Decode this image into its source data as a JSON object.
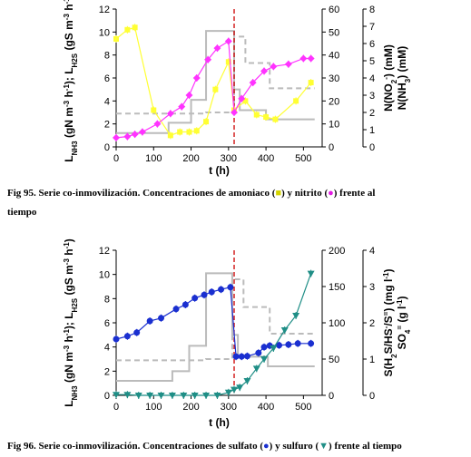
{
  "chart_data": [
    {
      "type": "line",
      "id": "fig95",
      "xlabel": "t (h)",
      "ylabel_left": "L_NH3 (gN m^-3 h^-1); L_H2S (gS m^-3 h^-1)",
      "ylabel_right1": "N(NO2-) (mM)",
      "ylabel_right2": "N(NH3) (mM)",
      "xlim": [
        0,
        550
      ],
      "xticks": [
        0,
        100,
        200,
        300,
        400,
        500
      ],
      "ylim_left": [
        0,
        12
      ],
      "yticks_left": [
        0,
        2,
        4,
        6,
        8,
        10,
        12
      ],
      "ylim_right1": [
        0,
        60
      ],
      "yticks_right1": [
        0,
        10,
        20,
        30,
        40,
        50,
        60
      ],
      "ylim_right2": [
        0,
        8
      ],
      "yticks_right2": [
        0,
        1,
        2,
        3,
        4,
        5,
        6,
        7,
        8
      ],
      "vline_x": 315,
      "series": [
        {
          "axis": "right1",
          "color": "#ffff33",
          "marker": "square",
          "x": [
            0,
            30,
            50,
            100,
            145,
            170,
            195,
            215,
            240,
            265,
            300,
            315,
            345,
            375,
            400,
            425,
            480,
            520
          ],
          "y": [
            47,
            51,
            52,
            16,
            5,
            6.5,
            6.5,
            7,
            11,
            25,
            37,
            16,
            20,
            14,
            13,
            12,
            20,
            28
          ]
        },
        {
          "axis": "right1",
          "color": "#ff33ff",
          "marker": "diamond",
          "x": [
            0,
            30,
            50,
            70,
            110,
            145,
            175,
            195,
            215,
            245,
            270,
            300,
            315,
            335,
            365,
            395,
            420,
            460,
            500,
            520
          ],
          "y": [
            4,
            4.5,
            5.5,
            6.5,
            10,
            14.5,
            17.5,
            22.5,
            30,
            38,
            43,
            46,
            15,
            21,
            28,
            33,
            35,
            36,
            38.5,
            38.5
          ]
        },
        {
          "axis": "left",
          "color": "#bbbbbb",
          "style": "solid",
          "step": true,
          "x": [
            0,
            140,
            140,
            200,
            200,
            240,
            240,
            315,
            315,
            330,
            330,
            400,
            400,
            530
          ],
          "y": [
            1.2,
            1.2,
            2.1,
            2.1,
            4.1,
            4.1,
            10.1,
            10.1,
            5.0,
            5.0,
            3.2,
            3.2,
            2.4,
            2.4
          ]
        },
        {
          "axis": "left",
          "color": "#bbbbbb",
          "style": "dashed",
          "step": true,
          "x": [
            0,
            240,
            240,
            315,
            315,
            345,
            345,
            410,
            410,
            530
          ],
          "y": [
            2.9,
            2.9,
            3.0,
            3.0,
            9.6,
            9.6,
            7.3,
            7.3,
            5.1,
            5.1
          ]
        }
      ]
    },
    {
      "type": "line",
      "id": "fig96",
      "xlabel": "t (h)",
      "ylabel_left": "L_NH3 (gN m^-3 h^-1); L_H2S (gS m^-3 h^-1)",
      "ylabel_right1": "S(H2S/HS-/S=) (mg l^-1)",
      "ylabel_right2": "SO4= (g l^-1)",
      "xlim": [
        0,
        550
      ],
      "xticks": [
        0,
        100,
        200,
        300,
        400,
        500
      ],
      "ylim_left": [
        0,
        12
      ],
      "yticks_left": [
        0,
        2,
        4,
        6,
        8,
        10,
        12
      ],
      "ylim_right1": [
        0,
        200
      ],
      "yticks_right1": [
        0,
        50,
        100,
        150,
        200
      ],
      "ylim_right2": [
        0,
        4
      ],
      "yticks_right2": [
        0,
        1,
        2,
        3,
        4
      ],
      "vline_x": 315,
      "series": [
        {
          "axis": "right2",
          "color": "#1a2fd0",
          "marker": "circle",
          "x": [
            0,
            30,
            55,
            90,
            120,
            160,
            185,
            210,
            235,
            255,
            280,
            305,
            320,
            335,
            350,
            380,
            395,
            410,
            435,
            460,
            485,
            520
          ],
          "y": [
            1.55,
            1.63,
            1.73,
            2.05,
            2.13,
            2.38,
            2.5,
            2.68,
            2.77,
            2.85,
            2.92,
            2.98,
            1.07,
            1.07,
            1.08,
            1.17,
            1.33,
            1.37,
            1.38,
            1.4,
            1.43,
            1.43
          ]
        },
        {
          "axis": "right1",
          "color": "#1f8e86",
          "marker": "triangle",
          "x": [
            0,
            30,
            60,
            90,
            120,
            150,
            180,
            210,
            240,
            270,
            300,
            315,
            330,
            350,
            375,
            395,
            420,
            450,
            480,
            520
          ],
          "y": [
            1,
            1,
            0,
            0,
            0,
            0,
            0,
            0,
            0,
            0,
            4,
            8,
            11,
            20,
            37,
            50,
            65,
            90,
            110,
            168
          ]
        },
        {
          "axis": "left",
          "color": "#bbbbbb",
          "style": "solid",
          "step": true,
          "x": [
            0,
            150,
            150,
            195,
            195,
            240,
            240,
            310,
            310,
            325,
            325,
            405,
            405,
            530
          ],
          "y": [
            1.2,
            1.2,
            2.0,
            2.0,
            4.1,
            4.1,
            10.1,
            10.1,
            5.0,
            5.0,
            3.2,
            3.2,
            2.4,
            2.4
          ]
        },
        {
          "axis": "left",
          "color": "#bbbbbb",
          "style": "dashed",
          "step": true,
          "x": [
            0,
            240,
            240,
            310,
            310,
            340,
            340,
            410,
            410,
            530
          ],
          "y": [
            2.9,
            2.9,
            3.0,
            3.0,
            9.6,
            9.6,
            7.3,
            7.3,
            5.1,
            5.1
          ]
        }
      ]
    }
  ],
  "captions": {
    "fig95_line1_pre": "Fig 95. Serie co-inmovilización. Concentraciones de amoniaco (",
    "fig95_sym1": "■",
    "fig95_line1_mid": ") y nitrito (",
    "fig95_sym2": "●",
    "fig95_line1_post": ") frente al",
    "fig95_line2": "tiempo",
    "fig96_pre": "Fig 96. Serie co-inmovilización. Concentraciones de sulfato (",
    "fig96_sym1": "●",
    "fig96_mid": ") y sulfuro (",
    "fig96_sym2": "▼",
    "fig96_post": ") frente al tiempo"
  },
  "colors": {
    "yellow": "#ffff33",
    "magenta": "#ff33ff",
    "blue": "#1a2fd0",
    "teal": "#1f8e86",
    "grey_step": "#bbbbbb",
    "vline": "#cc0000"
  }
}
